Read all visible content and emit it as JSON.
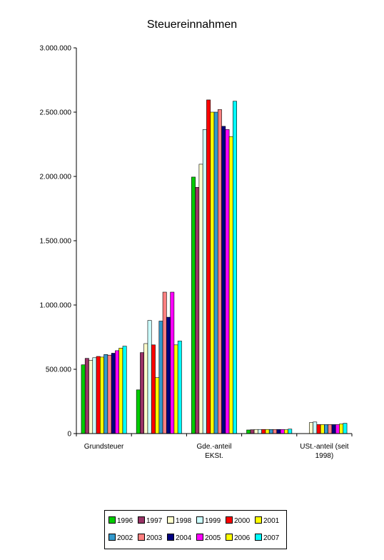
{
  "chart_data": {
    "type": "bar",
    "title": "Steuereinnahmen",
    "categories": [
      [
        "Grundsteuer"
      ],
      [
        ""
      ],
      [
        "Gde.-anteil",
        "EKSt."
      ],
      [
        ""
      ],
      [
        "USt.-anteil (seit",
        "1998)"
      ]
    ],
    "ylim": [
      0,
      3000000
    ],
    "yticks": [
      0,
      500000,
      1000000,
      1500000,
      2000000,
      2500000,
      3000000
    ],
    "ytick_labels": [
      "0",
      "500.000",
      "1.000.000",
      "1.500.000",
      "2.000.000",
      "2.500.000",
      "3.000.000"
    ],
    "grid": false,
    "legend_position": "bottom",
    "series": [
      {
        "name": "1996",
        "color": "#00CC00",
        "values": [
          535000,
          340000,
          1995000,
          28000,
          0
        ]
      },
      {
        "name": "1997",
        "color": "#993366",
        "values": [
          585000,
          630000,
          1915000,
          30000,
          0
        ]
      },
      {
        "name": "1998",
        "color": "#FFFFCC",
        "values": [
          570000,
          700000,
          2095000,
          32000,
          85000
        ]
      },
      {
        "name": "1999",
        "color": "#CCFFFF",
        "values": [
          590000,
          880000,
          2365000,
          32000,
          90000
        ]
      },
      {
        "name": "2000",
        "color": "#FF0000",
        "values": [
          600000,
          690000,
          2595000,
          32000,
          70000
        ]
      },
      {
        "name": "2001",
        "color": "#FFFF00",
        "values": [
          595000,
          435000,
          2500000,
          32000,
          70000
        ]
      },
      {
        "name": "2002",
        "color": "#3399CC",
        "values": [
          615000,
          875000,
          2500000,
          32000,
          70000
        ]
      },
      {
        "name": "2003",
        "color": "#FF8080",
        "values": [
          610000,
          1100000,
          2520000,
          32000,
          70000
        ]
      },
      {
        "name": "2004",
        "color": "#000080",
        "values": [
          625000,
          905000,
          2390000,
          32000,
          70000
        ]
      },
      {
        "name": "2005",
        "color": "#FF00FF",
        "values": [
          645000,
          1100000,
          2365000,
          32000,
          70000
        ]
      },
      {
        "name": "2006",
        "color": "#FFFF00",
        "values": [
          665000,
          690000,
          2310000,
          30000,
          75000
        ]
      },
      {
        "name": "2007",
        "color": "#00FFFF",
        "values": [
          680000,
          720000,
          2585000,
          35000,
          80000
        ]
      }
    ]
  }
}
